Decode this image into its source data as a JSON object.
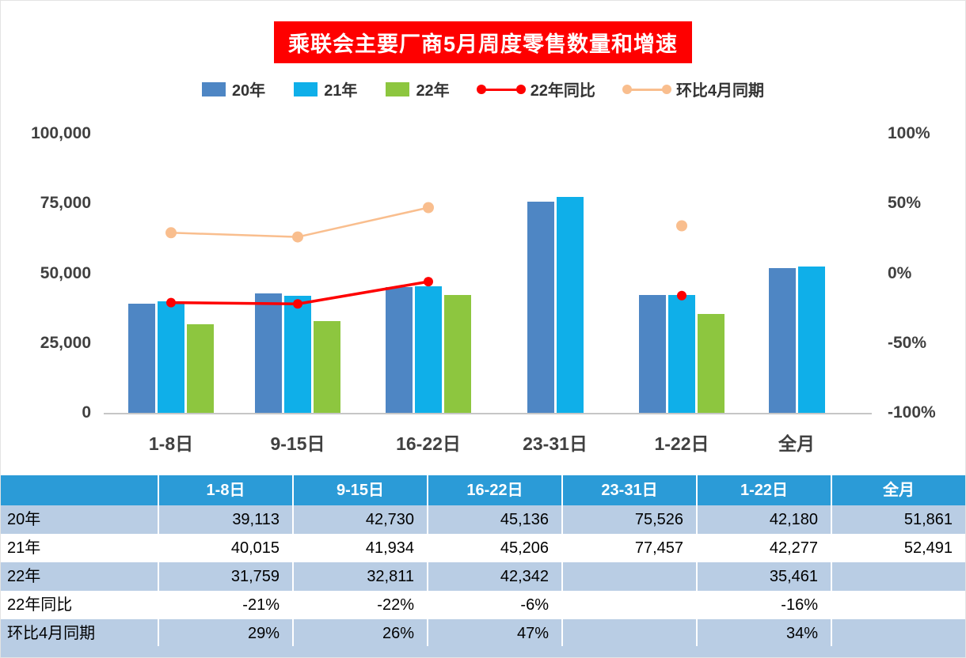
{
  "title": "乘联会主要厂商5月周度零售数量和增速",
  "legend": [
    {
      "label": "20年",
      "type": "bar",
      "color": "#4E86C4"
    },
    {
      "label": "21年",
      "type": "bar",
      "color": "#0FAFE9"
    },
    {
      "label": "22年",
      "type": "bar",
      "color": "#8DC63F"
    },
    {
      "label": "22年同比",
      "type": "line",
      "color": "#FE0000"
    },
    {
      "label": "环比4月同期",
      "type": "line",
      "color": "#F9BE8E"
    }
  ],
  "chart_data": {
    "type": "bar+line",
    "title": "乘联会主要厂商5月周度零售数量和增速",
    "categories": [
      "1-8日",
      "9-15日",
      "16-22日",
      "23-31日",
      "1-22日",
      "全月"
    ],
    "bar_series": [
      {
        "name": "20年",
        "color": "#4E86C4",
        "values": [
          39113,
          42730,
          45136,
          75526,
          42180,
          51861
        ]
      },
      {
        "name": "21年",
        "color": "#0FAFE9",
        "values": [
          40015,
          41934,
          45206,
          77457,
          42277,
          52491
        ]
      },
      {
        "name": "22年",
        "color": "#8DC63F",
        "values": [
          31759,
          32811,
          42342,
          null,
          35461,
          null
        ]
      }
    ],
    "line_series": [
      {
        "name": "环比4月同期",
        "color": "#F9BE8E",
        "axis": "right",
        "values_pct": [
          29,
          26,
          47,
          null,
          34,
          null
        ]
      },
      {
        "name": "22年同比",
        "color": "#FE0000",
        "axis": "right",
        "values_pct": [
          -21,
          -22,
          -6,
          null,
          -16,
          null
        ]
      }
    ],
    "left_axis": {
      "ticks": [
        "100,000",
        "75,000",
        "50,000",
        "25,000",
        "0"
      ],
      "min": 0,
      "max": 100000
    },
    "right_axis": {
      "ticks": [
        "100%",
        "50%",
        "0%",
        "-50%",
        "-100%"
      ],
      "min": -100,
      "max": 100
    },
    "grid": "off",
    "legend_position": "top"
  },
  "table": {
    "header": [
      "",
      "1-8日",
      "9-15日",
      "16-22日",
      "23-31日",
      "1-22日",
      "全月"
    ],
    "rows": [
      {
        "label": "20年",
        "cells": [
          "39,113",
          "42,730",
          "45,136",
          "75,526",
          "42,180",
          "51,861"
        ]
      },
      {
        "label": "21年",
        "cells": [
          "40,015",
          "41,934",
          "45,206",
          "77,457",
          "42,277",
          "52,491"
        ]
      },
      {
        "label": "22年",
        "cells": [
          "31,759",
          "32,811",
          "42,342",
          "",
          "35,461",
          ""
        ]
      },
      {
        "label": "22年同比",
        "cells": [
          "-21%",
          "-22%",
          "-6%",
          "",
          "-16%",
          ""
        ]
      },
      {
        "label": "环比4月同期",
        "cells": [
          "29%",
          "26%",
          "47%",
          "",
          "34%",
          ""
        ]
      }
    ]
  },
  "colors": {
    "title_bg": "#FE0000",
    "table_header_bg": "#2B9BD7",
    "table_alt_row_bg": "#B9CDE4",
    "axis_text": "#404040"
  }
}
